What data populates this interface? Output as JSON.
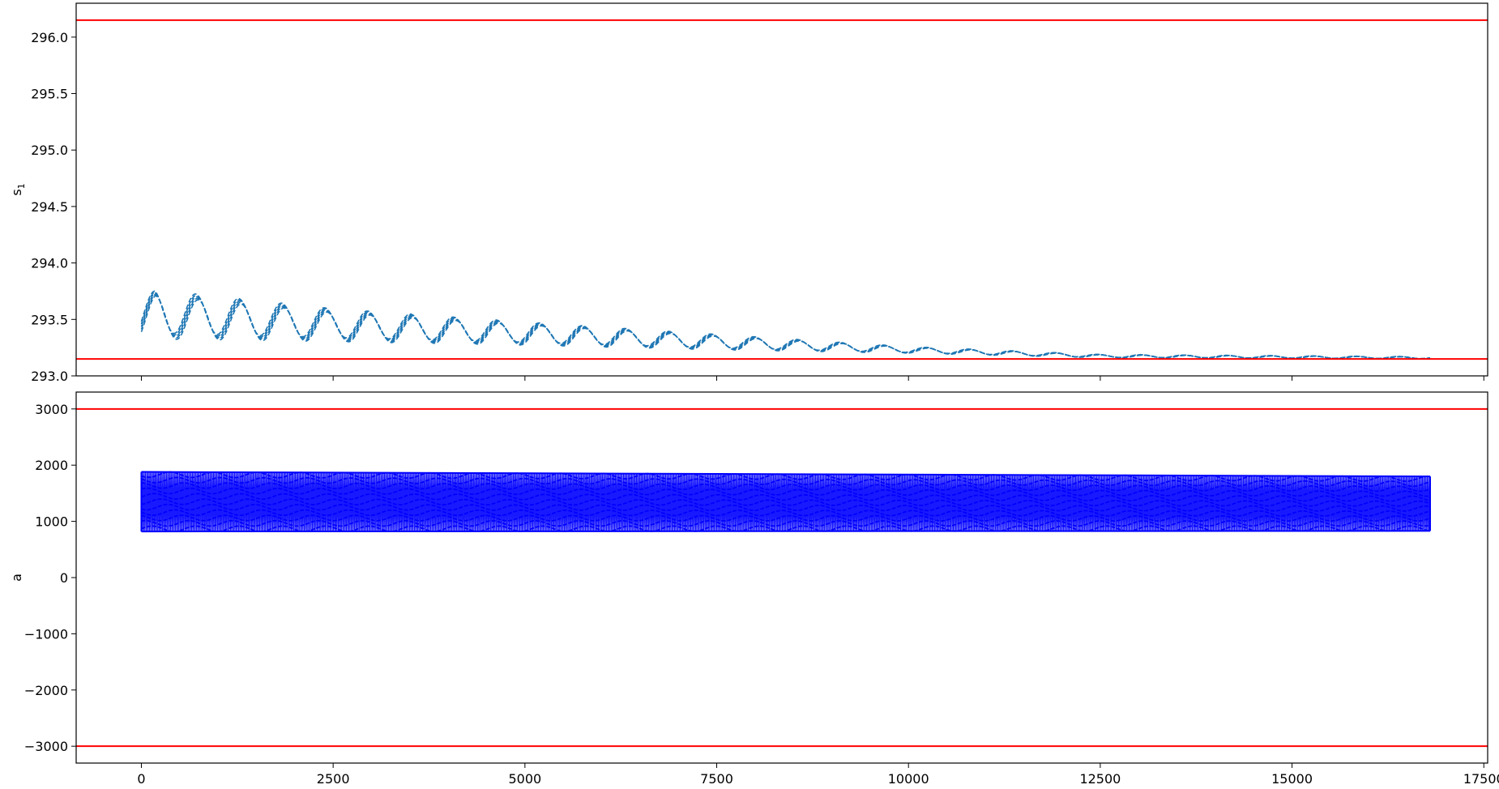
{
  "chart_data": [
    {
      "type": "line",
      "ylabel_main": "s",
      "ylabel_sub": "1",
      "xlim": [
        -850,
        17550
      ],
      "ylim": [
        293.0,
        296.3
      ],
      "xticks": [
        0,
        2500,
        5000,
        7500,
        10000,
        12500,
        15000,
        17500
      ],
      "show_xtick_labels": false,
      "yticks": [
        293.0,
        293.5,
        294.0,
        294.5,
        295.0,
        295.5,
        296.0
      ],
      "ytick_labels": [
        "293.0",
        "293.5",
        "294.0",
        "294.5",
        "295.0",
        "295.5",
        "296.0"
      ],
      "grid": false,
      "reference_lines": [
        293.15,
        296.15
      ],
      "reference_color": "#ff0000",
      "series": [
        {
          "style": "dashed",
          "color": "#1f77b4",
          "x_range": [
            0,
            16800
          ],
          "envelope": [
            {
              "x": 0,
              "lo": 293.3,
              "hi": 293.65
            },
            {
              "x": 180,
              "lo": 293.32,
              "hi": 293.77
            },
            {
              "x": 2500,
              "lo": 293.3,
              "hi": 293.6
            },
            {
              "x": 5000,
              "lo": 293.27,
              "hi": 293.48
            },
            {
              "x": 7500,
              "lo": 293.23,
              "hi": 293.37
            },
            {
              "x": 10000,
              "lo": 293.2,
              "hi": 293.26
            },
            {
              "x": 12500,
              "lo": 293.16,
              "hi": 293.19
            },
            {
              "x": 16800,
              "lo": 293.15,
              "hi": 293.17
            }
          ],
          "oscillation_period": 560
        }
      ]
    },
    {
      "type": "line",
      "ylabel": "a",
      "xlim": [
        -850,
        17550
      ],
      "ylim": [
        -3300,
        3300
      ],
      "xticks": [
        0,
        2500,
        5000,
        7500,
        10000,
        12500,
        15000,
        17500
      ],
      "xtick_labels": [
        "0",
        "2500",
        "5000",
        "7500",
        "10000",
        "12500",
        "15000",
        "17500"
      ],
      "yticks": [
        -3000,
        -2000,
        -1000,
        0,
        1000,
        2000,
        3000
      ],
      "ytick_labels": [
        "−3000",
        "−2000",
        "−1000",
        "0",
        "1000",
        "2000",
        "3000"
      ],
      "grid": false,
      "reference_lines": [
        -3000,
        3000
      ],
      "reference_color": "#ff0000",
      "series": [
        {
          "style": "dashed",
          "color": "#0000ff",
          "x_range": [
            0,
            16800
          ],
          "band": [
            820,
            1880
          ],
          "band_end": [
            830,
            1800
          ]
        }
      ]
    }
  ]
}
